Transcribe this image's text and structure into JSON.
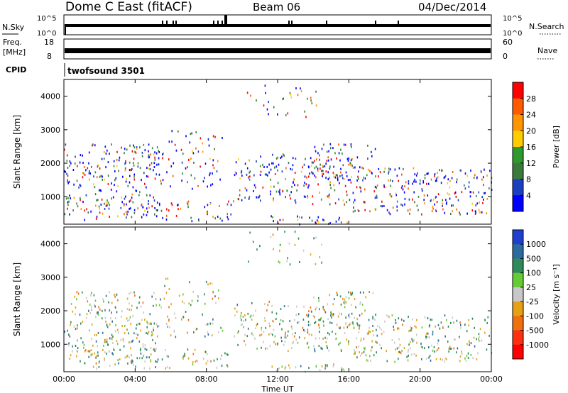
{
  "header": {
    "station": "Dome C East (fitACF)",
    "beam": "Beam 06",
    "date": "04/Dec/2014"
  },
  "strips": {
    "nsky_label": "N.Sky",
    "nsky_ticks": [
      "10^5",
      "10^0"
    ],
    "nsearch_label": "N.Search",
    "nsearch_ticks": [
      "10^5",
      "10^0"
    ],
    "freq_label_1": "Freq.",
    "freq_label_2": "[MHz]",
    "freq_ticks": [
      "18",
      "8"
    ],
    "nave_label": "Nave",
    "nave_ticks": [
      "60",
      "0"
    ],
    "cpid_label": "CPID",
    "cpid_value": "twofsound 3501"
  },
  "chart_data": [
    {
      "type": "heatmap",
      "name": "power",
      "ylabel": "Slant Range [km]",
      "y_ticks": [
        1000,
        2000,
        3000,
        4000
      ],
      "ylim": [
        180,
        4500
      ],
      "x_ticks": [
        "00:00",
        "04:00",
        "08:00",
        "12:00",
        "16:00",
        "20:00",
        "00:00"
      ],
      "colorbar_label": "Power [dB]",
      "colorbar_ticks": [
        28,
        24,
        20,
        16,
        12,
        8,
        4
      ],
      "colorbar_colors": [
        "#ff0000",
        "#ff5a00",
        "#ff9500",
        "#ffcc00",
        "#2e9a2e",
        "#3a7a3a",
        "#1a40c0",
        "#0000ff"
      ]
    },
    {
      "type": "heatmap",
      "name": "velocity",
      "ylabel": "Slant Range [km]",
      "y_ticks": [
        1000,
        2000,
        3000,
        4000
      ],
      "ylim": [
        180,
        4500
      ],
      "x_ticks": [
        "00:00",
        "04:00",
        "08:00",
        "12:00",
        "16:00",
        "20:00",
        "00:00"
      ],
      "xlabel": "Time UT",
      "colorbar_label": "Velocity [m s⁻¹]",
      "colorbar_ticks": [
        "1000",
        "500",
        "100",
        "25",
        "-25",
        "-100",
        "-500",
        "-1000"
      ],
      "colorbar_colors": [
        "#1f3fd0",
        "#2d6aa0",
        "#2e8a5a",
        "#66cc33",
        "#c8c8c8",
        "#e6a014",
        "#f07010",
        "#ff3010",
        "#ff0000"
      ]
    }
  ]
}
